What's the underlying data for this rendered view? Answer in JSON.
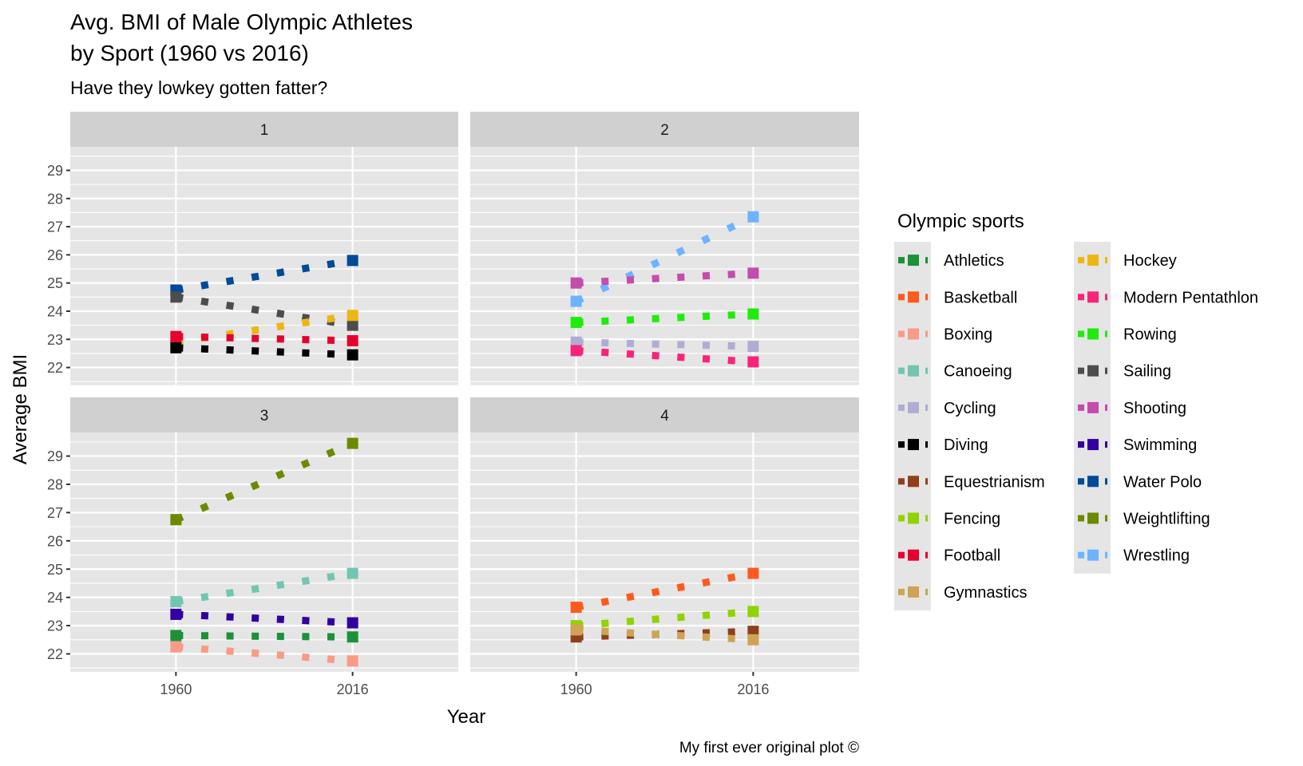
{
  "chart_data": {
    "type": "line",
    "title": "Avg. BMI of Male Olympic Athletes\nby Sport (1960 vs 2016)",
    "title_lines": [
      "Avg. BMI of Male Olympic Athletes",
      "by Sport (1960 vs 2016)"
    ],
    "subtitle": "Have they lowkey gotten fatter?",
    "xlabel": "Year",
    "ylabel": "Average BMI",
    "caption": "My first ever original plot ©",
    "x": [
      1960,
      2016
    ],
    "x_tick_labels": [
      "1960",
      "2016"
    ],
    "xlim": [
      1926.5,
      2049.5
    ],
    "y_ticks": [
      22,
      23,
      24,
      25,
      26,
      27,
      28,
      29
    ],
    "y_tick_labels": [
      "22",
      "23",
      "24",
      "25",
      "26",
      "27",
      "28",
      "29"
    ],
    "ylim": [
      21.365,
      29.835
    ],
    "grid": true,
    "line_style": "dotted",
    "legend": {
      "title": "Olympic sports",
      "placement": "right",
      "columns": [
        [
          "Athletics",
          "Basketball",
          "Boxing",
          "Canoeing",
          "Cycling",
          "Diving",
          "Equestrianism",
          "Fencing",
          "Football",
          "Gymnastics"
        ],
        [
          "Hockey",
          "Modern Pentathlon",
          "Rowing",
          "Sailing",
          "Shooting",
          "Swimming",
          "Water Polo",
          "Weightlifting",
          "Wrestling"
        ]
      ]
    },
    "facets": [
      {
        "label": "1",
        "series": [
          {
            "name": "Water Polo",
            "color": "#004a98",
            "values": [
              24.75,
              25.8
            ]
          },
          {
            "name": "Sailing",
            "color": "#4d4d4d",
            "values": [
              24.5,
              23.5
            ]
          },
          {
            "name": "Hockey",
            "color": "#ecb714",
            "values": [
              22.9,
              23.85
            ]
          },
          {
            "name": "Football",
            "color": "#e6002e",
            "values": [
              23.1,
              22.95
            ]
          },
          {
            "name": "Diving",
            "color": "#000000",
            "values": [
              22.7,
              22.45
            ]
          }
        ]
      },
      {
        "label": "2",
        "series": [
          {
            "name": "Wrestling",
            "color": "#6db3ff",
            "values": [
              24.35,
              27.35
            ]
          },
          {
            "name": "Shooting",
            "color": "#c44cad",
            "values": [
              25.0,
              25.35
            ]
          },
          {
            "name": "Rowing",
            "color": "#20ec0c",
            "values": [
              23.6,
              23.9
            ]
          },
          {
            "name": "Cycling",
            "color": "#afadd4",
            "values": [
              22.9,
              22.75
            ]
          },
          {
            "name": "Modern Pentathlon",
            "color": "#f82479",
            "values": [
              22.6,
              22.2
            ]
          }
        ]
      },
      {
        "label": "3",
        "series": [
          {
            "name": "Weightlifting",
            "color": "#6b8a00",
            "values": [
              26.75,
              29.45
            ]
          },
          {
            "name": "Canoeing",
            "color": "#72c6b1",
            "values": [
              23.85,
              24.85
            ]
          },
          {
            "name": "Swimming",
            "color": "#3200a0",
            "values": [
              23.4,
              23.1
            ]
          },
          {
            "name": "Athletics",
            "color": "#1b9138",
            "values": [
              22.65,
              22.6
            ]
          },
          {
            "name": "Boxing",
            "color": "#f99b86",
            "values": [
              22.25,
              21.75
            ]
          }
        ]
      },
      {
        "label": "4",
        "series": [
          {
            "name": "Basketball",
            "color": "#fe5a1d",
            "values": [
              23.65,
              24.85
            ]
          },
          {
            "name": "Fencing",
            "color": "#8fd300",
            "values": [
              23.0,
              23.5
            ]
          },
          {
            "name": "Equestrianism",
            "color": "#8f401b",
            "values": [
              22.6,
              22.8
            ]
          },
          {
            "name": "Gymnastics",
            "color": "#cfa353",
            "values": [
              22.85,
              22.5
            ]
          }
        ]
      }
    ]
  },
  "colors": {
    "Athletics": "#1b9138",
    "Basketball": "#fe5a1d",
    "Boxing": "#f99b86",
    "Canoeing": "#72c6b1",
    "Cycling": "#afadd4",
    "Diving": "#000000",
    "Equestrianism": "#8f401b",
    "Fencing": "#8fd300",
    "Football": "#e6002e",
    "Gymnastics": "#cfa353",
    "Hockey": "#ecb714",
    "Modern Pentathlon": "#f82479",
    "Rowing": "#20ec0c",
    "Sailing": "#4d4d4d",
    "Shooting": "#c44cad",
    "Swimming": "#3200a0",
    "Water Polo": "#004a98",
    "Weightlifting": "#6b8a00",
    "Wrestling": "#6db3ff",
    "panel_bg": "#e5e5e5",
    "strip_bg": "#d0d0d0",
    "grid": "#ffffff"
  }
}
